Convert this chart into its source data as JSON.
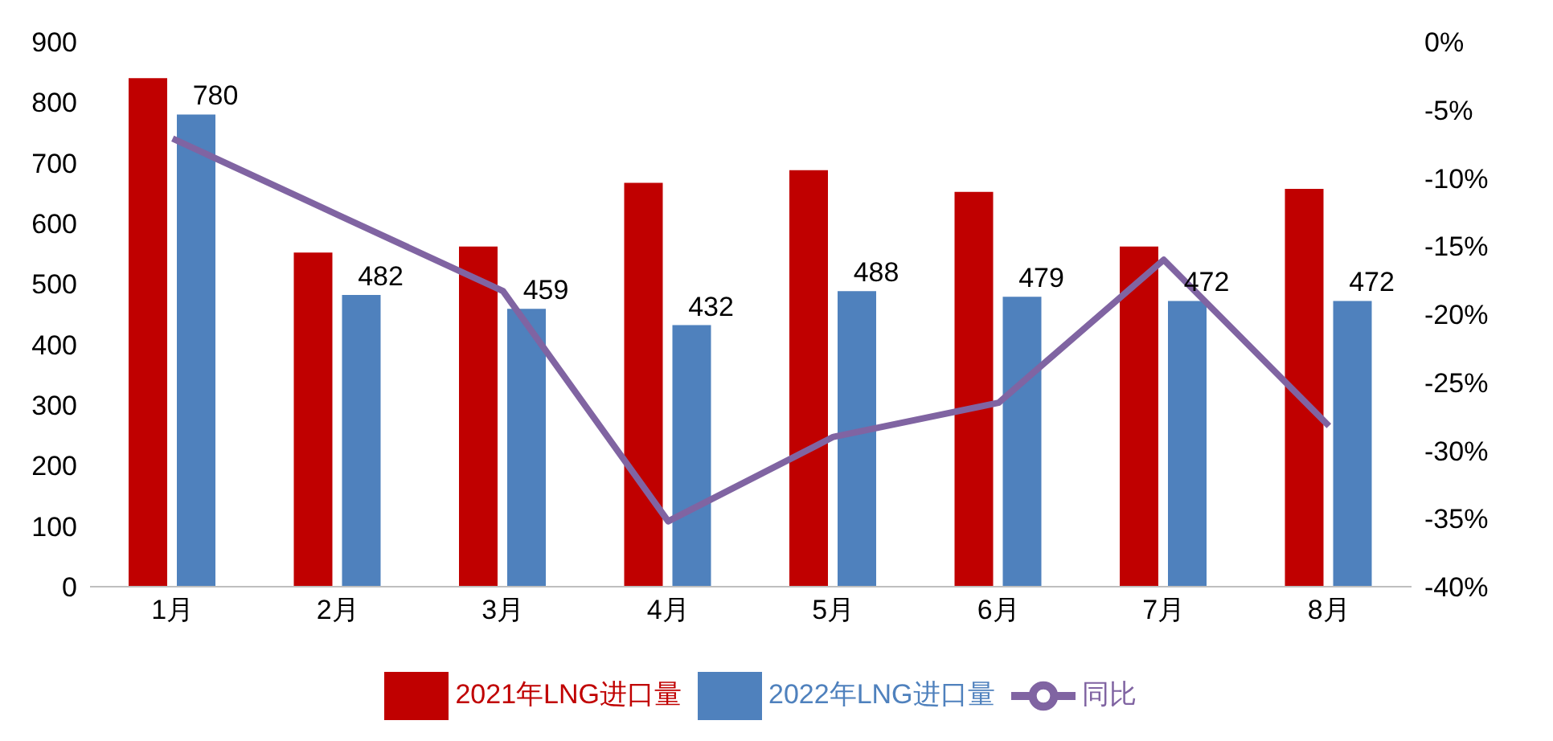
{
  "chart_data": {
    "type": "bar",
    "categories": [
      "1月",
      "2月",
      "3月",
      "4月",
      "5月",
      "6月",
      "7月",
      "8月"
    ],
    "series": [
      {
        "name": "2021年LNG进口量",
        "color": "#c00000",
        "values": [
          840,
          552,
          562,
          667,
          688,
          652,
          562,
          657
        ]
      },
      {
        "name": "2022年LNG进口量",
        "color": "#4f81bd",
        "values": [
          780,
          482,
          459,
          432,
          488,
          479,
          472,
          472
        ],
        "value_labels": [
          "780",
          "482",
          "459",
          "432",
          "488",
          "479",
          "472",
          "472"
        ]
      },
      {
        "name": "同比",
        "type": "line",
        "axis": "y2",
        "color": "#8064a2",
        "values": [
          -7.1,
          -12.7,
          -18.3,
          -35.2,
          -29,
          -26.5,
          -16,
          -28.2
        ]
      }
    ],
    "ylim": [
      0,
      900
    ],
    "yticks": [
      0,
      100,
      200,
      300,
      400,
      500,
      600,
      700,
      800,
      900
    ],
    "y2lim": [
      -40,
      0
    ],
    "y2ticks": [
      {
        "value": -40,
        "label": "-40%"
      },
      {
        "value": -35,
        "label": "-35%"
      },
      {
        "value": -30,
        "label": "-30%"
      },
      {
        "value": -25,
        "label": "-25%"
      },
      {
        "value": -20,
        "label": "-20%"
      },
      {
        "value": -15,
        "label": "-15%"
      },
      {
        "value": -10,
        "label": "-10%"
      },
      {
        "value": -5,
        "label": "-5%"
      },
      {
        "value": 0,
        "label": "0%"
      }
    ],
    "legend": "bottom",
    "marker": "none"
  }
}
